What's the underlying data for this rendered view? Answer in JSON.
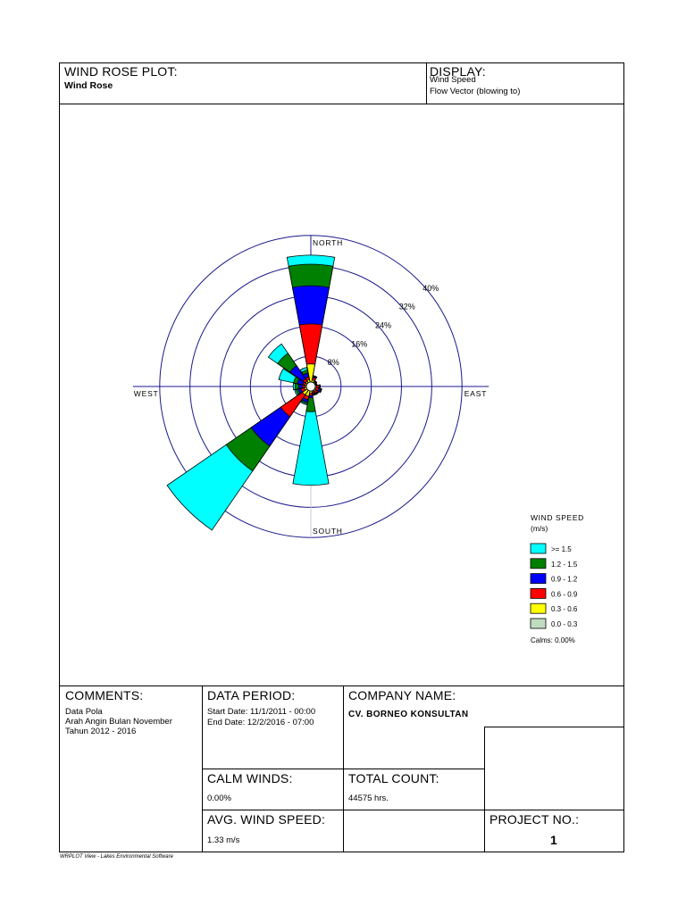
{
  "header": {
    "plot_caption": "WIND ROSE PLOT:",
    "plot_name": "Wind Rose",
    "display_caption": "DISPLAY:",
    "display_line1": "Wind Speed",
    "display_line2": "Flow Vector (blowing to)"
  },
  "chart_data": {
    "type": "wind-rose",
    "directions": [
      "N",
      "NNE",
      "NE",
      "ENE",
      "E",
      "ESE",
      "SE",
      "SSE",
      "S",
      "SSW",
      "SW",
      "WSW",
      "W",
      "WNW",
      "NW",
      "NNW"
    ],
    "compass_labels": {
      "north": "NORTH",
      "east": "EAST",
      "south": "SOUTH",
      "west": "WEST"
    },
    "ring_labels": [
      "8%",
      "16%",
      "24%",
      "32%",
      "40%"
    ],
    "ring_values": [
      8,
      16,
      24,
      32,
      40
    ],
    "legend_title": "WIND SPEED",
    "legend_unit": "(m/s)",
    "calms_label": "Calms: 0.00%",
    "bins": [
      {
        "label": "0.0 -  0.3",
        "color": "#c0dcc0"
      },
      {
        "label": "0.3 -  0.6",
        "color": "#ffff00"
      },
      {
        "label": "0.6 -  0.9",
        "color": "#ff0000"
      },
      {
        "label": "0.9 -  1.2",
        "color": "#0000ff"
      },
      {
        "label": "1.2 -  1.5",
        "color": "#008000"
      },
      {
        "label": ">=   1.5",
        "color": "#00ffff"
      }
    ],
    "cumulative_percent": {
      "N": [
        0,
        4.8,
        15.4,
        25.5,
        31.2,
        33.6
      ],
      "NNE": [
        0,
        0.6,
        1.2,
        1.5,
        1.7,
        1.8
      ],
      "NE": [
        0,
        0.3,
        0.5,
        0.6,
        0.7,
        0.7
      ],
      "ENE": [
        0,
        0.2,
        0.4,
        0.5,
        0.5,
        0.5
      ],
      "E": [
        0,
        0.3,
        1.0,
        1.2,
        1.3,
        1.3
      ],
      "ESE": [
        0,
        0.3,
        1.0,
        1.5,
        1.7,
        1.8
      ],
      "SE": [
        0,
        0.4,
        1.0,
        1.2,
        1.3,
        1.4
      ],
      "SSE": [
        0,
        0.3,
        0.7,
        1.0,
        1.2,
        1.3
      ],
      "S": [
        0,
        0.6,
        1.2,
        1.8,
        5.5,
        25.0
      ],
      "SSW": [
        0,
        1.5,
        2.4,
        3.1,
        3.5,
        3.8
      ],
      "SW": [
        0,
        1.5,
        8.5,
        18.0,
        26.0,
        45.0
      ],
      "WSW": [
        0,
        0.6,
        1.5,
        2.2,
        2.8,
        3.2
      ],
      "W": [
        0,
        0.4,
        1.0,
        2.0,
        3.0,
        3.5
      ],
      "WNW": [
        0,
        0.4,
        1.0,
        2.5,
        3.5,
        7.5
      ],
      "NW": [
        0,
        0.5,
        1.3,
        5.5,
        9.5,
        12.5
      ],
      "NNW": [
        0,
        0.7,
        1.4,
        2.5,
        3.3,
        4.0
      ]
    }
  },
  "comments": {
    "caption": "COMMENTS:",
    "line1": "Data Pola",
    "line2": "Arah Angin Bulan November",
    "line3": "Tahun 2012 - 2016"
  },
  "data_period": {
    "caption": "DATA PERIOD:",
    "start": "Start Date: 11/1/2011 - 00:00",
    "end": "End Date: 12/2/2016 - 07:00"
  },
  "company": {
    "caption": "COMPANY NAME:",
    "name": "CV. BORNEO KONSULTAN"
  },
  "calm_winds": {
    "caption": "CALM WINDS:",
    "value": "0.00%"
  },
  "total_count": {
    "caption": "TOTAL COUNT:",
    "value": "44575 hrs."
  },
  "avg_speed": {
    "caption": "AVG. WIND SPEED:",
    "value": "1.33 m/s"
  },
  "project": {
    "caption": "PROJECT NO.:",
    "value": "1"
  },
  "footer": "WRPLOT View - Lakes Environmental Software"
}
